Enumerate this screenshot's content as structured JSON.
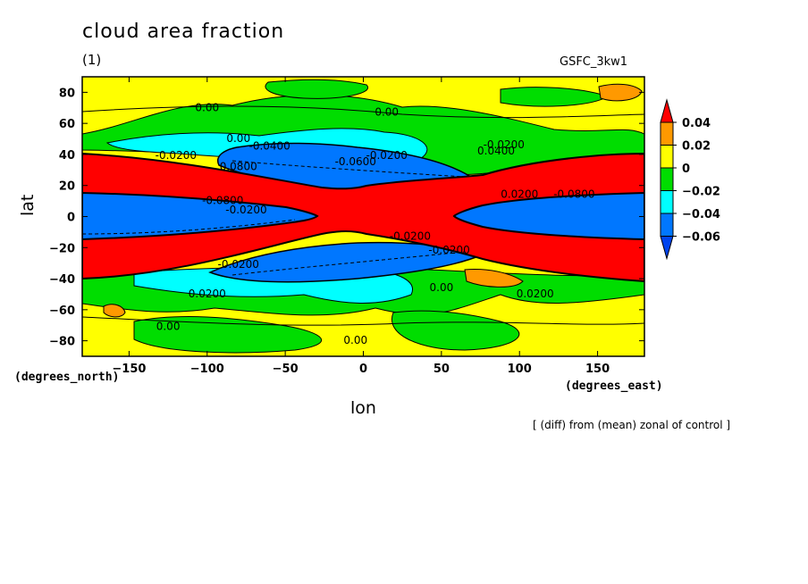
{
  "chart_data": {
    "type": "heatmap",
    "title": "cloud area fraction",
    "panel_label": "(1)",
    "model_label": "GSFC_3kw1",
    "xlabel": "lon",
    "ylabel": "lat",
    "x_unit": "(degrees_east)",
    "y_unit": "(degrees_north)",
    "footnote": "[ (diff) from (mean) zonal of control ]",
    "xlim": [
      -180,
      180
    ],
    "ylim": [
      -90,
      90
    ],
    "x_ticks": [
      -150,
      -100,
      -50,
      0,
      50,
      100,
      150
    ],
    "y_ticks": [
      -80,
      -60,
      -40,
      -20,
      0,
      20,
      40,
      60,
      80
    ],
    "colorbar": {
      "levels": [
        "0.04",
        "0.02",
        "0",
        "-0.02",
        "-0.04",
        "-0.06"
      ],
      "colors": [
        "#ff0000",
        "#ff9900",
        "#ffff00",
        "#00dd00",
        "#00ffff",
        "#0077ff",
        "#0044ee"
      ]
    },
    "contour_labels": [
      {
        "text": "0.00",
        "lon": -100,
        "lat": 68
      },
      {
        "text": "0.00",
        "lon": 15,
        "lat": 65
      },
      {
        "text": "0.00",
        "lon": -80,
        "lat": 48
      },
      {
        "text": "-0.0400",
        "lon": -60,
        "lat": 43
      },
      {
        "text": "-0.0200",
        "lon": -120,
        "lat": 37
      },
      {
        "text": "-0.0600",
        "lon": -5,
        "lat": 33
      },
      {
        "text": "-0.0200",
        "lon": 15,
        "lat": 37
      },
      {
        "text": "-0.0200",
        "lon": 90,
        "lat": 44
      },
      {
        "text": "0.0400",
        "lon": 85,
        "lat": 40
      },
      {
        "text": "0.0800",
        "lon": -80,
        "lat": 30
      },
      {
        "text": "-0.0800",
        "lon": -90,
        "lat": 8
      },
      {
        "text": "-0.0200",
        "lon": -75,
        "lat": 2
      },
      {
        "text": "0.0200",
        "lon": 100,
        "lat": 12
      },
      {
        "text": "-0.0800",
        "lon": 135,
        "lat": 12
      },
      {
        "text": "-0.0200",
        "lon": 30,
        "lat": -15
      },
      {
        "text": "-0.0200",
        "lon": -80,
        "lat": -33
      },
      {
        "text": "-0.0200",
        "lon": 55,
        "lat": -24
      },
      {
        "text": "0.00",
        "lon": 50,
        "lat": -48
      },
      {
        "text": "0.0200",
        "lon": -100,
        "lat": -52
      },
      {
        "text": "0.0200",
        "lon": 110,
        "lat": -52
      },
      {
        "text": "0.00",
        "lon": -125,
        "lat": -73
      },
      {
        "text": "0.00",
        "lon": -5,
        "lat": -82
      }
    ]
  }
}
